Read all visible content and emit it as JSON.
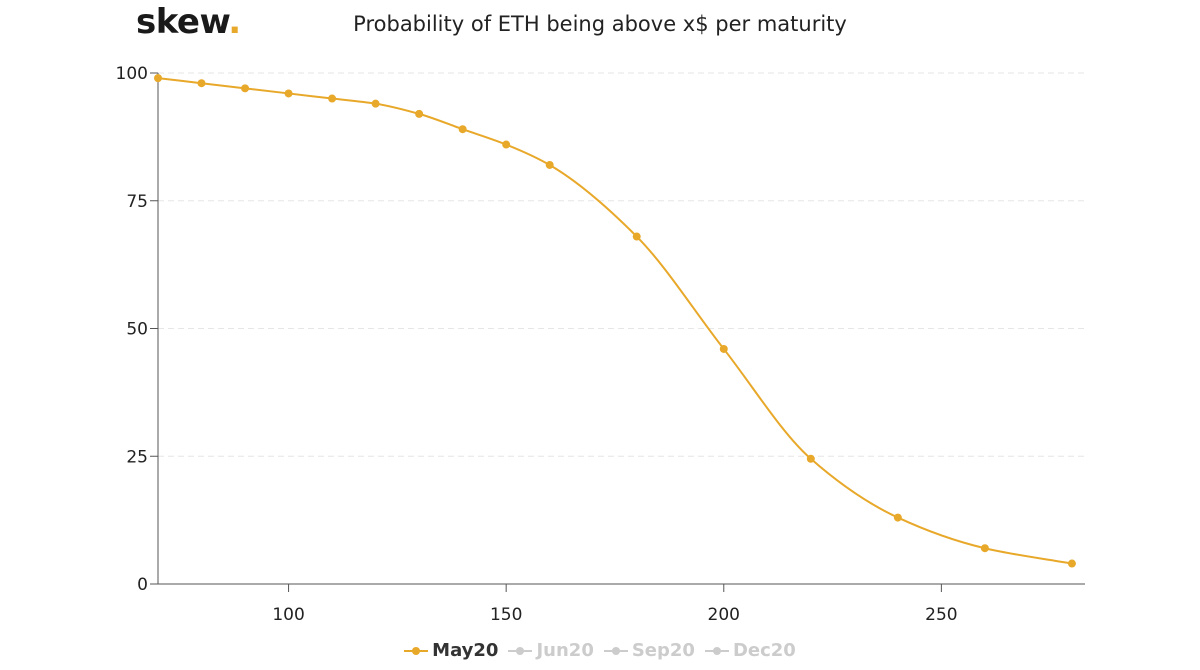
{
  "logo": {
    "text": "skew",
    "dot": "."
  },
  "chart_data": {
    "type": "line",
    "title": "Probability of ETH being above x$ per maturity",
    "xlabel": "",
    "ylabel": "",
    "xlim": [
      70,
      283
    ],
    "ylim": [
      0,
      100
    ],
    "xticks": [
      100,
      150,
      200,
      250
    ],
    "yticks": [
      0,
      25,
      50,
      75,
      100
    ],
    "grid": "horizontal-dashed",
    "legend_position": "bottom-center",
    "series": [
      {
        "name": "May20",
        "color": "#e8a82a",
        "active": true,
        "x": [
          70,
          80,
          90,
          100,
          110,
          120,
          130,
          140,
          150,
          160,
          180,
          200,
          220,
          240,
          260,
          280
        ],
        "y": [
          99,
          98,
          97,
          96,
          95,
          94,
          92,
          89,
          86,
          82,
          68,
          46,
          24.5,
          13,
          7,
          4
        ]
      },
      {
        "name": "Jun20",
        "color": "#cccccc",
        "active": false,
        "x": [],
        "y": []
      },
      {
        "name": "Sep20",
        "color": "#cccccc",
        "active": false,
        "x": [],
        "y": []
      },
      {
        "name": "Dec20",
        "color": "#cccccc",
        "active": false,
        "x": [],
        "y": []
      }
    ]
  }
}
